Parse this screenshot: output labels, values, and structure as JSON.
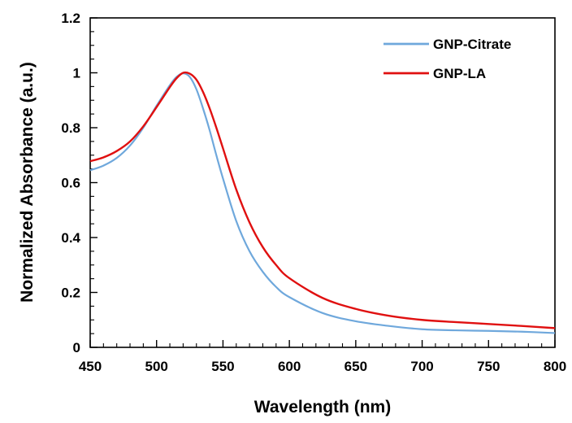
{
  "chart_data": {
    "type": "line",
    "title": "",
    "xlabel": "Wavelength (nm)",
    "ylabel": "Normalized Absorbance (a.u.)",
    "xlim": [
      450,
      800
    ],
    "ylim": [
      0,
      1.2
    ],
    "x_ticks": [
      450,
      500,
      550,
      600,
      650,
      700,
      750,
      800
    ],
    "x_tick_labels": [
      "450",
      "500",
      "550",
      "600",
      "650",
      "700",
      "750",
      "800"
    ],
    "y_ticks": [
      0,
      0.2,
      0.4,
      0.6,
      0.8,
      1,
      1.2
    ],
    "y_tick_labels": [
      "0",
      "0.2",
      "0.4",
      "0.6",
      "0.8",
      "1",
      "1.2"
    ],
    "grid": false,
    "legend_position": "top-right",
    "series": [
      {
        "name": "GNP-Citrate",
        "color": "#6fa8dc",
        "points": [
          [
            450,
            0.645
          ],
          [
            460,
            0.662
          ],
          [
            470,
            0.69
          ],
          [
            480,
            0.735
          ],
          [
            490,
            0.8
          ],
          [
            500,
            0.88
          ],
          [
            510,
            0.955
          ],
          [
            515,
            0.985
          ],
          [
            520,
            0.998
          ],
          [
            525,
            0.985
          ],
          [
            530,
            0.94
          ],
          [
            535,
            0.87
          ],
          [
            540,
            0.79
          ],
          [
            545,
            0.7
          ],
          [
            550,
            0.615
          ],
          [
            560,
            0.46
          ],
          [
            570,
            0.35
          ],
          [
            580,
            0.275
          ],
          [
            590,
            0.22
          ],
          [
            600,
            0.183
          ],
          [
            625,
            0.125
          ],
          [
            650,
            0.095
          ],
          [
            675,
            0.078
          ],
          [
            700,
            0.066
          ],
          [
            725,
            0.062
          ],
          [
            750,
            0.06
          ],
          [
            775,
            0.057
          ],
          [
            800,
            0.052
          ]
        ]
      },
      {
        "name": "GNP-LA",
        "color": "#e01010",
        "points": [
          [
            450,
            0.678
          ],
          [
            460,
            0.692
          ],
          [
            470,
            0.715
          ],
          [
            480,
            0.75
          ],
          [
            490,
            0.805
          ],
          [
            500,
            0.875
          ],
          [
            510,
            0.948
          ],
          [
            515,
            0.98
          ],
          [
            520,
            1.0
          ],
          [
            525,
            0.997
          ],
          [
            530,
            0.975
          ],
          [
            535,
            0.93
          ],
          [
            540,
            0.87
          ],
          [
            545,
            0.8
          ],
          [
            550,
            0.725
          ],
          [
            560,
            0.575
          ],
          [
            570,
            0.455
          ],
          [
            580,
            0.365
          ],
          [
            590,
            0.3
          ],
          [
            600,
            0.252
          ],
          [
            625,
            0.18
          ],
          [
            650,
            0.14
          ],
          [
            675,
            0.115
          ],
          [
            700,
            0.1
          ],
          [
            725,
            0.092
          ],
          [
            750,
            0.085
          ],
          [
            775,
            0.078
          ],
          [
            800,
            0.07
          ]
        ]
      }
    ]
  }
}
